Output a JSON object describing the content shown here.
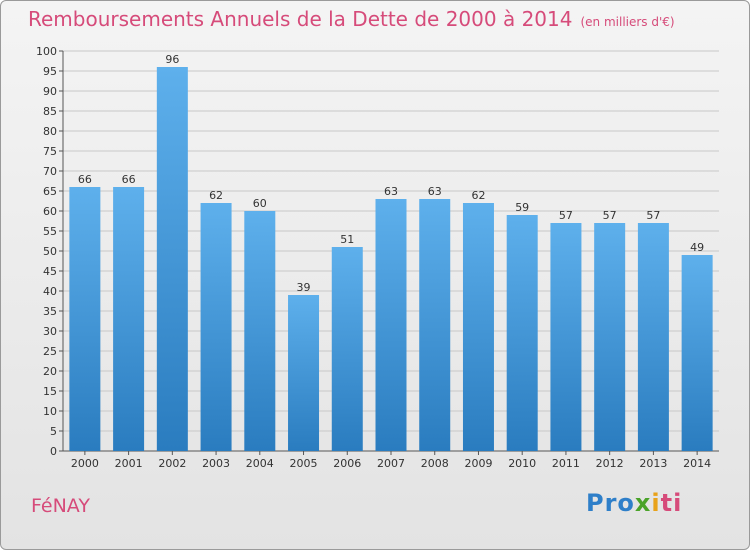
{
  "title": "Remboursements Annuels de la Dette de 2000 à 2014",
  "unit": "(en milliers d'€)",
  "commune": "FéNAY",
  "logo": "Proxiti",
  "colors": {
    "bar_top": "#5eb0ec",
    "bar_bottom": "#2a7cbf",
    "title": "#d64b7a"
  },
  "chart_data": {
    "type": "bar",
    "categories": [
      "2000",
      "2001",
      "2002",
      "2003",
      "2004",
      "2005",
      "2006",
      "2007",
      "2008",
      "2009",
      "2010",
      "2011",
      "2012",
      "2013",
      "2014"
    ],
    "values": [
      66,
      66,
      96,
      62,
      60,
      39,
      51,
      63,
      63,
      62,
      59,
      57,
      57,
      57,
      49
    ],
    "ylim": [
      0,
      100
    ],
    "ytick_step": 5,
    "grid": true,
    "data_labels": true
  }
}
